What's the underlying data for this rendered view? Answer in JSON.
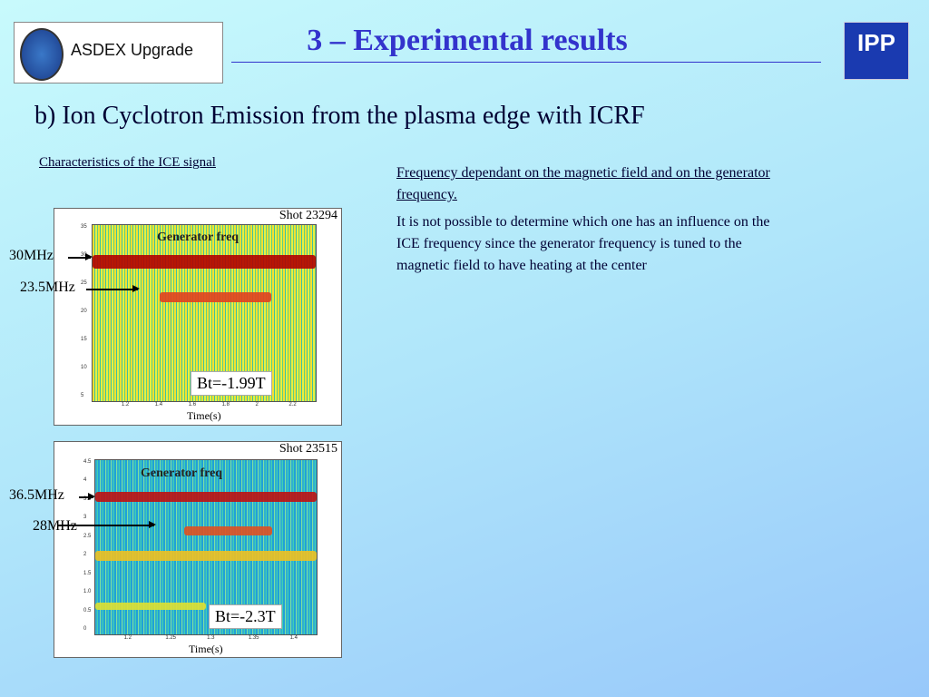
{
  "header": {
    "logo_text": "ASDEX Upgrade",
    "title": "3 – Experimental results",
    "ipp_logo": "IPP"
  },
  "subtitle": "b) Ion Cyclotron Emission from the plasma edge with ICRF",
  "left_heading": "Characteristics of the ICE signal",
  "right_text": {
    "heading": "Frequency dependant on the magnetic field and on the generator frequency.",
    "body": "It is not possible to determine which one has an influence on the ICE frequency since the generator frequency is tuned to the magnetic field to have heating at the center"
  },
  "plots": [
    {
      "shot": "Shot 23294",
      "band_label": "Generator freq",
      "field": "Bt=-1.99T",
      "xlabel": "Time(s)",
      "yticks": [
        "35",
        "30",
        "25",
        "20",
        "15",
        "10",
        "5"
      ],
      "xticks": [
        "1.2",
        "1.4",
        "1.6",
        "1.8",
        "2",
        "2.2"
      ],
      "annotations": [
        "30MHz",
        "23.5MHz"
      ]
    },
    {
      "shot": "Shot 23515",
      "band_label": "Generator freq",
      "field": "Bt=-2.3T",
      "xlabel": "Time(s)",
      "yticks": [
        "4.5",
        "4",
        "3.5",
        "3",
        "2.5",
        "2",
        "1.5",
        "1.0",
        "0.5",
        "0"
      ],
      "xticks": [
        "1.2",
        "1.25",
        "1.3",
        "1.35",
        "1.4"
      ],
      "annotations": [
        "36.5MHz",
        "28MHz"
      ]
    }
  ]
}
